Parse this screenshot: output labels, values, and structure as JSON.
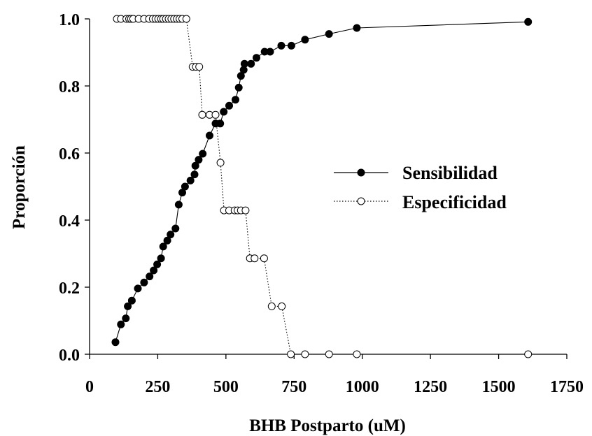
{
  "chart_data": {
    "type": "line",
    "xlabel": "BHB Postparto (uM)",
    "ylabel": "Proporción",
    "xlim": [
      0,
      1750
    ],
    "ylim": [
      0,
      1.0
    ],
    "xticks": [
      "0",
      "250",
      "500",
      "750",
      "1000",
      "1250",
      "1500",
      "1750"
    ],
    "yticks": [
      "0.0",
      "0.2",
      "0.4",
      "0.6",
      "0.8",
      "1.0"
    ],
    "grid": false,
    "legend_position": "center-right",
    "series": [
      {
        "name": "Sensibilidad",
        "marker": "filled-circle",
        "line": "solid",
        "color": "#000000",
        "points": [
          [
            95,
            0.036
          ],
          [
            115,
            0.089
          ],
          [
            133,
            0.107
          ],
          [
            140,
            0.143
          ],
          [
            155,
            0.16
          ],
          [
            177,
            0.196
          ],
          [
            200,
            0.214
          ],
          [
            220,
            0.232
          ],
          [
            235,
            0.25
          ],
          [
            248,
            0.268
          ],
          [
            262,
            0.286
          ],
          [
            270,
            0.321
          ],
          [
            285,
            0.339
          ],
          [
            297,
            0.357
          ],
          [
            315,
            0.375
          ],
          [
            327,
            0.446
          ],
          [
            340,
            0.482
          ],
          [
            350,
            0.5
          ],
          [
            370,
            0.518
          ],
          [
            385,
            0.536
          ],
          [
            388,
            0.562
          ],
          [
            400,
            0.58
          ],
          [
            415,
            0.598
          ],
          [
            440,
            0.652
          ],
          [
            462,
            0.688
          ],
          [
            479,
            0.688
          ],
          [
            492,
            0.723
          ],
          [
            512,
            0.741
          ],
          [
            535,
            0.759
          ],
          [
            547,
            0.795
          ],
          [
            555,
            0.83
          ],
          [
            565,
            0.848
          ],
          [
            568,
            0.866
          ],
          [
            592,
            0.866
          ],
          [
            612,
            0.884
          ],
          [
            642,
            0.902
          ],
          [
            662,
            0.902
          ],
          [
            703,
            0.92
          ],
          [
            740,
            0.92
          ],
          [
            790,
            0.938
          ],
          [
            878,
            0.955
          ],
          [
            980,
            0.973
          ],
          [
            1608,
            0.991
          ]
        ]
      },
      {
        "name": "Especificidad",
        "marker": "open-circle",
        "line": "dotted",
        "color": "#000000",
        "points": [
          [
            100,
            1.0
          ],
          [
            115,
            1.0
          ],
          [
            135,
            1.0
          ],
          [
            145,
            1.0
          ],
          [
            152,
            1.0
          ],
          [
            160,
            1.0
          ],
          [
            180,
            1.0
          ],
          [
            200,
            1.0
          ],
          [
            218,
            1.0
          ],
          [
            232,
            1.0
          ],
          [
            242,
            1.0
          ],
          [
            252,
            1.0
          ],
          [
            262,
            1.0
          ],
          [
            270,
            1.0
          ],
          [
            280,
            1.0
          ],
          [
            290,
            1.0
          ],
          [
            300,
            1.0
          ],
          [
            310,
            1.0
          ],
          [
            320,
            1.0
          ],
          [
            330,
            1.0
          ],
          [
            340,
            1.0
          ],
          [
            355,
            1.0
          ],
          [
            378,
            0.857
          ],
          [
            390,
            0.857
          ],
          [
            402,
            0.857
          ],
          [
            413,
            0.714
          ],
          [
            440,
            0.714
          ],
          [
            462,
            0.714
          ],
          [
            480,
            0.571
          ],
          [
            493,
            0.429
          ],
          [
            512,
            0.429
          ],
          [
            532,
            0.429
          ],
          [
            543,
            0.429
          ],
          [
            555,
            0.429
          ],
          [
            572,
            0.429
          ],
          [
            588,
            0.286
          ],
          [
            605,
            0.286
          ],
          [
            640,
            0.286
          ],
          [
            668,
            0.143
          ],
          [
            705,
            0.143
          ],
          [
            738,
            0.0
          ],
          [
            790,
            0.0
          ],
          [
            878,
            0.0
          ],
          [
            980,
            0.0
          ],
          [
            1608,
            0.0
          ]
        ]
      }
    ]
  }
}
